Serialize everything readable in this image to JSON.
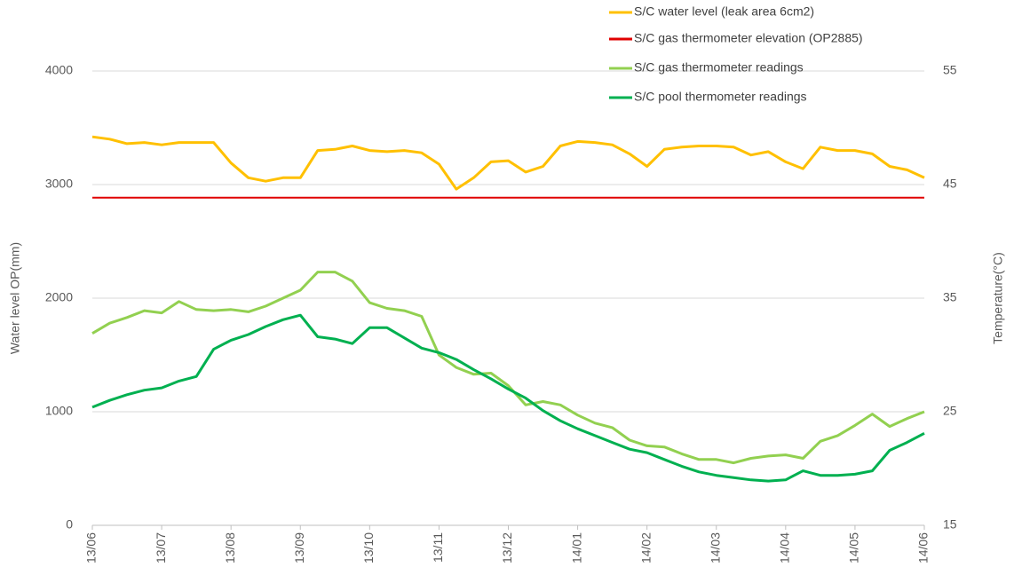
{
  "chart_data": {
    "type": "line",
    "ylabel": "Water level OP(mm)",
    "y2label": "Temperature(°C)",
    "x": [
      0,
      0.25,
      0.5,
      0.75,
      1,
      1.25,
      1.5,
      1.75,
      2,
      2.25,
      2.5,
      2.75,
      3,
      3.25,
      3.5,
      3.75,
      4,
      4.25,
      4.5,
      4.75,
      5,
      5.25,
      5.5,
      5.75,
      6,
      6.25,
      6.5,
      6.75,
      7,
      7.25,
      7.5,
      7.75,
      8,
      8.25,
      8.5,
      8.75,
      9,
      9.25,
      9.5,
      9.75,
      10,
      10.25,
      10.5,
      10.75,
      11,
      11.25,
      11.5,
      11.75,
      12
    ],
    "xlim": [
      0,
      12
    ],
    "xticks": [
      {
        "value": 0,
        "label": "13/06"
      },
      {
        "value": 1,
        "label": "13/07"
      },
      {
        "value": 2,
        "label": "13/08"
      },
      {
        "value": 3,
        "label": "13/09"
      },
      {
        "value": 4,
        "label": "13/10"
      },
      {
        "value": 5,
        "label": "13/11"
      },
      {
        "value": 6,
        "label": "13/12"
      },
      {
        "value": 7,
        "label": "14/01"
      },
      {
        "value": 8,
        "label": "14/02"
      },
      {
        "value": 9,
        "label": "14/03"
      },
      {
        "value": 10,
        "label": "14/04"
      },
      {
        "value": 11,
        "label": "14/05"
      },
      {
        "value": 12,
        "label": "14/06"
      }
    ],
    "ylim": [
      0,
      4000
    ],
    "yticks": [
      0,
      1000,
      2000,
      3000,
      4000
    ],
    "y2lim": [
      15,
      55
    ],
    "y2ticks": [
      15,
      25,
      35,
      45,
      55
    ],
    "grid": true,
    "legend": "top-right",
    "series": [
      {
        "name": "S/C water level (leak area 6cm2)",
        "color": "#ffc000",
        "values": [
          3420,
          3400,
          3360,
          3370,
          3350,
          3370,
          3370,
          3370,
          3190,
          3060,
          3030,
          3060,
          3060,
          3300,
          3310,
          3340,
          3300,
          3290,
          3300,
          3280,
          3180,
          2960,
          3060,
          3200,
          3210,
          3110,
          3160,
          3340,
          3380,
          3370,
          3350,
          3270,
          3160,
          3310,
          3330,
          3340,
          3340,
          3330,
          3260,
          3290,
          3200,
          3140,
          3330,
          3300,
          3300,
          3270,
          3160,
          3130,
          3060
        ]
      },
      {
        "name": "S/C gas thermometer elevation (OP2885)",
        "color": "#e00000",
        "values": [
          2885,
          2885,
          2885,
          2885,
          2885,
          2885,
          2885,
          2885,
          2885,
          2885,
          2885,
          2885,
          2885,
          2885,
          2885,
          2885,
          2885,
          2885,
          2885,
          2885,
          2885,
          2885,
          2885,
          2885,
          2885,
          2885,
          2885,
          2885,
          2885,
          2885,
          2885,
          2885,
          2885,
          2885,
          2885,
          2885,
          2885,
          2885,
          2885,
          2885,
          2885,
          2885,
          2885,
          2885,
          2885,
          2885,
          2885,
          2885,
          2885
        ]
      },
      {
        "name": "S/C gas thermometer readings",
        "color": "#92d050",
        "axis": "y2",
        "values": [
          31.9,
          32.8,
          33.3,
          33.9,
          33.7,
          34.7,
          34.0,
          33.9,
          34.0,
          33.8,
          34.3,
          35.0,
          35.7,
          37.3,
          37.3,
          36.5,
          34.6,
          34.1,
          33.9,
          33.4,
          30.0,
          28.9,
          28.3,
          28.4,
          27.3,
          25.6,
          25.9,
          25.6,
          24.7,
          24.0,
          23.6,
          22.5,
          22.0,
          21.9,
          21.3,
          20.8,
          20.8,
          20.5,
          20.9,
          21.1,
          21.2,
          20.9,
          22.4,
          22.9,
          23.8,
          24.8,
          23.7,
          24.4,
          25.0
        ]
      },
      {
        "name": "S/C pool thermometer readings",
        "color": "#00b050",
        "axis": "y2",
        "values": [
          25.4,
          26.0,
          26.5,
          26.9,
          27.1,
          27.7,
          28.1,
          30.5,
          31.3,
          31.8,
          32.5,
          33.1,
          33.5,
          31.6,
          31.4,
          31.0,
          32.4,
          32.4,
          31.5,
          30.6,
          30.2,
          29.6,
          28.7,
          27.9,
          27.0,
          26.2,
          25.1,
          24.2,
          23.5,
          22.9,
          22.3,
          21.7,
          21.4,
          20.8,
          20.2,
          19.7,
          19.4,
          19.2,
          19.0,
          18.9,
          19.0,
          19.8,
          19.4,
          19.4,
          19.5,
          19.8,
          21.6,
          22.3,
          23.1
        ]
      }
    ]
  }
}
